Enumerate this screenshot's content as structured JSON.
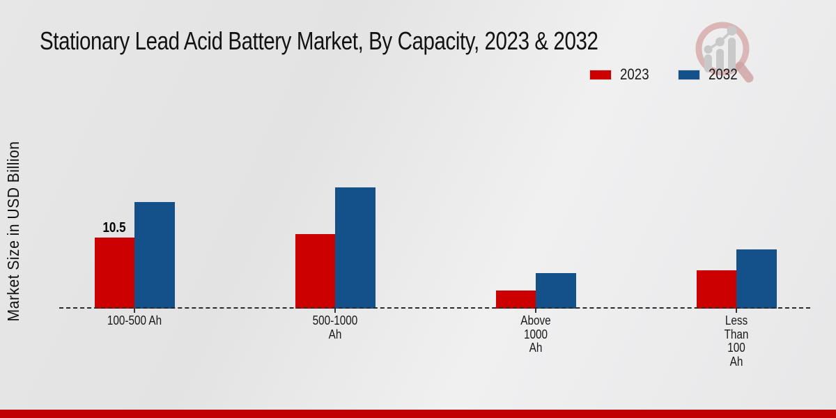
{
  "header": {
    "title": "Stationary Lead Acid Battery Market, By Capacity, 2023 & 2032"
  },
  "y_axis": {
    "label": "Market Size in USD Billion"
  },
  "chart_data": {
    "type": "bar",
    "title": "Stationary Lead Acid Battery Market, By Capacity, 2023 & 2032",
    "xlabel": "",
    "ylabel": "Market Size in USD Billion",
    "categories": [
      "100-500 Ah",
      "500-1000 Ah",
      "Above 1000 Ah",
      "Less Than 100 Ah"
    ],
    "category_label_lines": [
      [
        "100-500 Ah"
      ],
      [
        "500-1000",
        "Ah"
      ],
      [
        "Above",
        "1000",
        "Ah"
      ],
      [
        "Less",
        "Than",
        "100",
        "Ah"
      ]
    ],
    "series": [
      {
        "name": "2023",
        "color": "#cc0000",
        "values": [
          10.5,
          11.0,
          2.7,
          5.7
        ]
      },
      {
        "name": "2032",
        "color": "#14508a",
        "values": [
          15.8,
          17.9,
          5.3,
          8.8
        ]
      }
    ],
    "annotations": [
      {
        "series_index": 0,
        "category_index": 0,
        "text": "10.5"
      }
    ],
    "ylim": [
      0,
      20
    ],
    "grid": false,
    "legend_position": "top-right",
    "baseline_style": "dashed",
    "value_axis_visible": false
  },
  "legend": {
    "items": [
      {
        "label": "2023",
        "color": "#cc0000"
      },
      {
        "label": "2032",
        "color": "#14508a"
      }
    ]
  },
  "logo": {
    "name": "magnifier-bar-chart-watermark",
    "ring_color": "#d5a8a8",
    "bars_color": "#c9c9c9"
  },
  "footer": {
    "accent_color": "#c00000"
  }
}
